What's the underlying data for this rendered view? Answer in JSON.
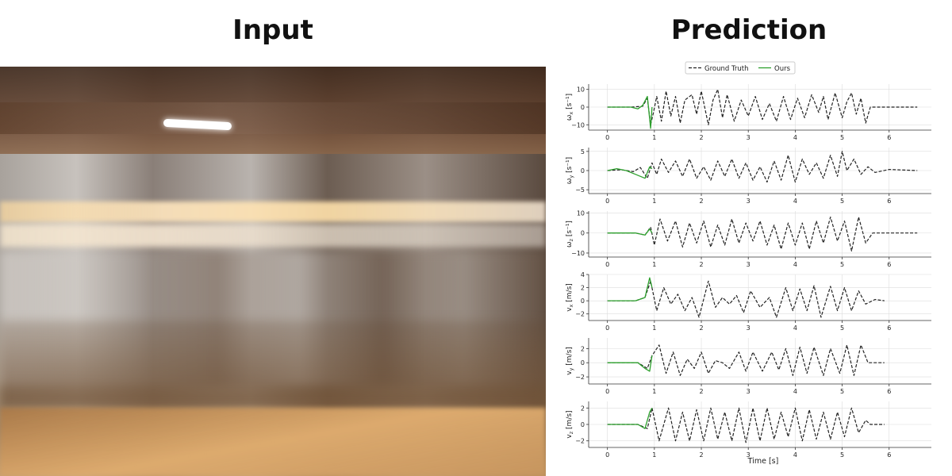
{
  "headings": {
    "left": "Input",
    "right": "Prediction"
  },
  "legend": {
    "gt": "Ground Truth",
    "ours": "Ours"
  },
  "colors": {
    "gt": "#222222",
    "ours": "#2ca02c",
    "grid": "#dddddd"
  },
  "chart_data": {
    "type": "line",
    "xlabel": "Time [s]",
    "xlim": [
      -0.4,
      6.9
    ],
    "xticks": [
      0,
      1,
      2,
      3,
      4,
      5,
      6
    ],
    "grid": true,
    "legend_position": "top-center",
    "panels": [
      {
        "ylabel_sym": "ω",
        "ylabel_sub": "x",
        "ylabel_unit": " [s⁻¹]",
        "ylim": [
          -13,
          13
        ],
        "yticks": [
          -10,
          0,
          10
        ],
        "gt_end": 6.6,
        "gt": [
          [
            0,
            0
          ],
          [
            0.5,
            0
          ],
          [
            0.75,
            0.5
          ],
          [
            0.85,
            5
          ],
          [
            0.92,
            -10
          ],
          [
            0.98,
            -3
          ],
          [
            1.05,
            6
          ],
          [
            1.15,
            -8
          ],
          [
            1.25,
            9
          ],
          [
            1.35,
            -5
          ],
          [
            1.45,
            6
          ],
          [
            1.55,
            -9
          ],
          [
            1.65,
            4
          ],
          [
            1.8,
            7
          ],
          [
            1.9,
            -4
          ],
          [
            2.0,
            9
          ],
          [
            2.15,
            -10
          ],
          [
            2.25,
            4
          ],
          [
            2.35,
            10
          ],
          [
            2.45,
            -6
          ],
          [
            2.55,
            7
          ],
          [
            2.7,
            -8
          ],
          [
            2.85,
            4
          ],
          [
            3.0,
            -5
          ],
          [
            3.15,
            6
          ],
          [
            3.3,
            -7
          ],
          [
            3.45,
            2
          ],
          [
            3.6,
            -8
          ],
          [
            3.75,
            6
          ],
          [
            3.9,
            -7
          ],
          [
            4.05,
            5
          ],
          [
            4.2,
            -6
          ],
          [
            4.35,
            7
          ],
          [
            4.5,
            -3
          ],
          [
            4.6,
            6
          ],
          [
            4.7,
            -7
          ],
          [
            4.85,
            8
          ],
          [
            5.0,
            -6
          ],
          [
            5.1,
            3
          ],
          [
            5.2,
            8
          ],
          [
            5.3,
            -4
          ],
          [
            5.4,
            5
          ],
          [
            5.5,
            -9
          ],
          [
            5.6,
            0
          ],
          [
            6.0,
            0
          ],
          [
            6.6,
            0
          ]
        ],
        "ours": [
          [
            0,
            0
          ],
          [
            0.5,
            0
          ],
          [
            0.65,
            -1
          ],
          [
            0.75,
            1
          ],
          [
            0.85,
            6
          ],
          [
            0.92,
            -12
          ],
          [
            0.95,
            0
          ]
        ]
      },
      {
        "ylabel_sym": "ω",
        "ylabel_sub": "y",
        "ylabel_unit": " [s⁻¹]",
        "ylim": [
          -6,
          6
        ],
        "yticks": [
          -5,
          0,
          5
        ],
        "gt_end": 6.6,
        "gt": [
          [
            0,
            0
          ],
          [
            0.3,
            0.2
          ],
          [
            0.55,
            -0.3
          ],
          [
            0.7,
            0.8
          ],
          [
            0.85,
            -2
          ],
          [
            0.95,
            2
          ],
          [
            1.05,
            -1
          ],
          [
            1.15,
            3
          ],
          [
            1.3,
            -0.5
          ],
          [
            1.45,
            2.5
          ],
          [
            1.6,
            -1.5
          ],
          [
            1.75,
            3
          ],
          [
            1.9,
            -2
          ],
          [
            2.05,
            1
          ],
          [
            2.2,
            -2.5
          ],
          [
            2.35,
            2.5
          ],
          [
            2.5,
            -1.5
          ],
          [
            2.65,
            3
          ],
          [
            2.8,
            -2
          ],
          [
            2.95,
            2
          ],
          [
            3.1,
            -2.5
          ],
          [
            3.25,
            1
          ],
          [
            3.4,
            -3
          ],
          [
            3.55,
            2.5
          ],
          [
            3.7,
            -2.5
          ],
          [
            3.85,
            4
          ],
          [
            4.0,
            -3
          ],
          [
            4.15,
            3
          ],
          [
            4.3,
            -1
          ],
          [
            4.45,
            2
          ],
          [
            4.6,
            -2
          ],
          [
            4.75,
            4
          ],
          [
            4.9,
            -1.5
          ],
          [
            5.0,
            5
          ],
          [
            5.1,
            0
          ],
          [
            5.25,
            3
          ],
          [
            5.4,
            -1
          ],
          [
            5.55,
            1
          ],
          [
            5.7,
            -0.5
          ],
          [
            6.0,
            0.3
          ],
          [
            6.6,
            0
          ]
        ],
        "ours": [
          [
            0,
            0
          ],
          [
            0.2,
            0.5
          ],
          [
            0.4,
            0
          ],
          [
            0.6,
            -1
          ],
          [
            0.8,
            -2
          ],
          [
            0.9,
            1
          ],
          [
            0.95,
            0.5
          ]
        ]
      },
      {
        "ylabel_sym": "ω",
        "ylabel_sub": "z",
        "ylabel_unit": " [s⁻¹]",
        "ylim": [
          -12,
          11
        ],
        "yticks": [
          -10,
          0,
          10
        ],
        "gt_end": 6.6,
        "gt": [
          [
            0,
            0
          ],
          [
            0.6,
            0
          ],
          [
            0.8,
            -1
          ],
          [
            0.92,
            3
          ],
          [
            1.0,
            -6
          ],
          [
            1.12,
            7
          ],
          [
            1.28,
            -4
          ],
          [
            1.45,
            6
          ],
          [
            1.6,
            -7
          ],
          [
            1.75,
            5
          ],
          [
            1.9,
            -5
          ],
          [
            2.05,
            6
          ],
          [
            2.2,
            -7
          ],
          [
            2.35,
            4
          ],
          [
            2.5,
            -6
          ],
          [
            2.65,
            7
          ],
          [
            2.8,
            -5
          ],
          [
            2.95,
            5
          ],
          [
            3.1,
            -4
          ],
          [
            3.25,
            6
          ],
          [
            3.4,
            -6
          ],
          [
            3.55,
            4
          ],
          [
            3.7,
            -8
          ],
          [
            3.85,
            5
          ],
          [
            4.0,
            -6
          ],
          [
            4.15,
            5
          ],
          [
            4.3,
            -8
          ],
          [
            4.45,
            6
          ],
          [
            4.6,
            -5
          ],
          [
            4.75,
            8
          ],
          [
            4.9,
            -4
          ],
          [
            5.05,
            6
          ],
          [
            5.2,
            -9
          ],
          [
            5.35,
            8
          ],
          [
            5.5,
            -5
          ],
          [
            5.65,
            0
          ],
          [
            6.6,
            0
          ]
        ],
        "ours": [
          [
            0,
            0
          ],
          [
            0.6,
            0
          ],
          [
            0.8,
            -1
          ],
          [
            0.9,
            2
          ],
          [
            0.95,
            0
          ]
        ]
      },
      {
        "ylabel_sym": "v",
        "ylabel_sub": "x",
        "ylabel_unit": " [m/s]",
        "ylim": [
          -3,
          4
        ],
        "yticks": [
          -2,
          0,
          2,
          4
        ],
        "gt_end": 5.9,
        "gt": [
          [
            0,
            0
          ],
          [
            0.6,
            0
          ],
          [
            0.8,
            0.5
          ],
          [
            0.92,
            3
          ],
          [
            1.05,
            -1.5
          ],
          [
            1.2,
            2
          ],
          [
            1.35,
            -0.5
          ],
          [
            1.5,
            1
          ],
          [
            1.65,
            -1.5
          ],
          [
            1.8,
            0.5
          ],
          [
            1.95,
            -2.5
          ],
          [
            2.15,
            3
          ],
          [
            2.3,
            -1
          ],
          [
            2.45,
            0.5
          ],
          [
            2.6,
            -0.5
          ],
          [
            2.75,
            0.8
          ],
          [
            2.9,
            -1.8
          ],
          [
            3.05,
            1.5
          ],
          [
            3.25,
            -1
          ],
          [
            3.45,
            0.5
          ],
          [
            3.6,
            -2.5
          ],
          [
            3.8,
            2
          ],
          [
            3.95,
            -1.5
          ],
          [
            4.1,
            1.8
          ],
          [
            4.25,
            -1.5
          ],
          [
            4.4,
            2.3
          ],
          [
            4.55,
            -2.5
          ],
          [
            4.75,
            2.2
          ],
          [
            4.9,
            -1.5
          ],
          [
            5.05,
            2
          ],
          [
            5.2,
            -1.5
          ],
          [
            5.35,
            1.5
          ],
          [
            5.5,
            -0.5
          ],
          [
            5.7,
            0.2
          ],
          [
            5.9,
            0
          ]
        ],
        "ours": [
          [
            0,
            0
          ],
          [
            0.6,
            0
          ],
          [
            0.8,
            0.5
          ],
          [
            0.9,
            3.5
          ],
          [
            0.95,
            2
          ]
        ]
      },
      {
        "ylabel_sym": "v",
        "ylabel_sub": "y",
        "ylabel_unit": " [m/s]",
        "ylim": [
          -3,
          3.5
        ],
        "yticks": [
          -2,
          0,
          2
        ],
        "gt_end": 5.9,
        "gt": [
          [
            0,
            0
          ],
          [
            0.65,
            0
          ],
          [
            0.85,
            -0.8
          ],
          [
            0.95,
            1
          ],
          [
            1.1,
            2.5
          ],
          [
            1.25,
            -1.5
          ],
          [
            1.4,
            1.5
          ],
          [
            1.55,
            -1.8
          ],
          [
            1.7,
            0.5
          ],
          [
            1.85,
            -0.8
          ],
          [
            2.0,
            1.5
          ],
          [
            2.15,
            -1.5
          ],
          [
            2.3,
            0.3
          ],
          [
            2.45,
            0
          ],
          [
            2.6,
            -0.8
          ],
          [
            2.8,
            1.5
          ],
          [
            2.95,
            -1.2
          ],
          [
            3.1,
            1.5
          ],
          [
            3.3,
            -1.2
          ],
          [
            3.5,
            1.5
          ],
          [
            3.65,
            -1
          ],
          [
            3.8,
            2
          ],
          [
            3.95,
            -1.8
          ],
          [
            4.1,
            2.2
          ],
          [
            4.25,
            -1.5
          ],
          [
            4.4,
            2.2
          ],
          [
            4.6,
            -1.8
          ],
          [
            4.75,
            2
          ],
          [
            4.95,
            -1.5
          ],
          [
            5.1,
            2.5
          ],
          [
            5.25,
            -1.8
          ],
          [
            5.4,
            2.5
          ],
          [
            5.55,
            0
          ],
          [
            5.9,
            0
          ]
        ],
        "ours": [
          [
            0,
            0
          ],
          [
            0.65,
            0
          ],
          [
            0.8,
            -0.8
          ],
          [
            0.9,
            -1.2
          ],
          [
            0.95,
            1
          ]
        ]
      },
      {
        "ylabel_sym": "v",
        "ylabel_sub": "z",
        "ylabel_unit": " [m/s]",
        "ylim": [
          -2.8,
          2.8
        ],
        "yticks": [
          -2,
          0,
          2
        ],
        "gt_end": 5.9,
        "gt": [
          [
            0,
            0
          ],
          [
            0.65,
            0
          ],
          [
            0.85,
            -0.5
          ],
          [
            0.95,
            2
          ],
          [
            1.1,
            -2
          ],
          [
            1.3,
            2
          ],
          [
            1.45,
            -2
          ],
          [
            1.6,
            1.5
          ],
          [
            1.75,
            -2
          ],
          [
            1.9,
            1.8
          ],
          [
            2.05,
            -2
          ],
          [
            2.2,
            2
          ],
          [
            2.35,
            -1.8
          ],
          [
            2.5,
            1.5
          ],
          [
            2.65,
            -2
          ],
          [
            2.8,
            2
          ],
          [
            2.95,
            -2.2
          ],
          [
            3.1,
            2
          ],
          [
            3.25,
            -2
          ],
          [
            3.4,
            2
          ],
          [
            3.55,
            -1.8
          ],
          [
            3.7,
            1.5
          ],
          [
            3.85,
            -1.5
          ],
          [
            4.0,
            2
          ],
          [
            4.15,
            -2
          ],
          [
            4.3,
            1.8
          ],
          [
            4.45,
            -1.8
          ],
          [
            4.6,
            1.5
          ],
          [
            4.75,
            -1.8
          ],
          [
            4.9,
            1.5
          ],
          [
            5.05,
            -1.5
          ],
          [
            5.2,
            2
          ],
          [
            5.35,
            -1
          ],
          [
            5.5,
            0.5
          ],
          [
            5.6,
            0
          ],
          [
            5.9,
            0
          ]
        ],
        "ours": [
          [
            0,
            0
          ],
          [
            0.65,
            0
          ],
          [
            0.8,
            -0.5
          ],
          [
            0.9,
            1.5
          ],
          [
            0.95,
            2
          ]
        ]
      }
    ]
  }
}
